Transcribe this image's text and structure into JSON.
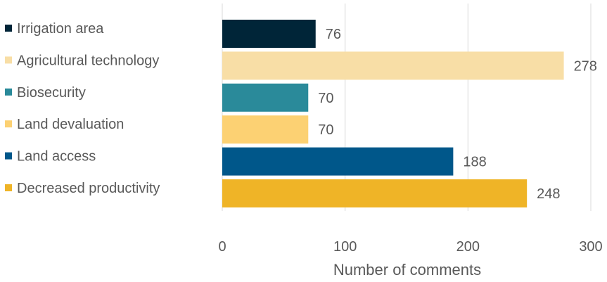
{
  "chart_data": {
    "type": "bar",
    "orientation": "horizontal",
    "categories": [
      "Irrigation area",
      "Agricultural technology",
      "Biosecurity",
      "Land devaluation",
      "Land access",
      "Decreased productivity"
    ],
    "values": [
      76,
      278,
      70,
      70,
      188,
      248
    ],
    "colors": [
      "#002538",
      "#F8DEA6",
      "#2A8A9A",
      "#FCD173",
      "#00578A",
      "#EFB427"
    ],
    "xlabel": "Number of comments",
    "ylabel": "",
    "xlim": [
      0,
      300
    ],
    "x_ticks": [
      "0",
      "100",
      "200",
      "300"
    ],
    "grid": true,
    "legend_position": "left"
  }
}
